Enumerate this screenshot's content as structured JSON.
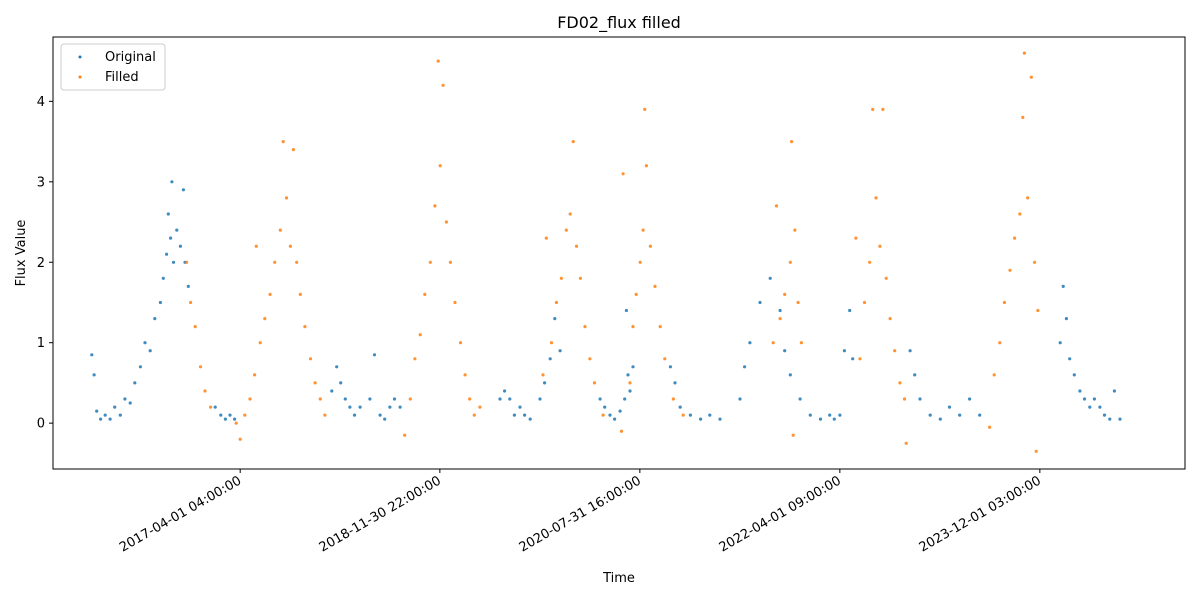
{
  "chart_data": {
    "type": "scatter",
    "title": "FD02_flux filled",
    "xlabel": "Time",
    "ylabel": "Flux Value",
    "xlim": [
      "2015-09-09",
      "2025-02-15"
    ],
    "ylim": [
      -0.57,
      4.8
    ],
    "yticks": [
      0,
      1,
      2,
      3,
      4
    ],
    "xticks": [
      {
        "date": "2017-04-01",
        "label": "2017-04-01 04:00:00"
      },
      {
        "date": "2018-11-30",
        "label": "2018-11-30 22:00:00"
      },
      {
        "date": "2020-07-31",
        "label": "2020-07-31 16:00:00"
      },
      {
        "date": "2022-04-01",
        "label": "2022-04-01 09:00:00"
      },
      {
        "date": "2023-12-01",
        "label": "2023-12-01 03:00:00"
      }
    ],
    "grid": false,
    "legend_position": "top-left",
    "series": [
      {
        "name": "Original",
        "color": "#1f77b4",
        "points": [
          [
            "2016-01-05",
            0.85
          ],
          [
            "2016-01-12",
            0.6
          ],
          [
            "2016-01-20",
            0.15
          ],
          [
            "2016-02-01",
            0.05
          ],
          [
            "2016-02-15",
            0.1
          ],
          [
            "2016-03-01",
            0.05
          ],
          [
            "2016-03-15",
            0.2
          ],
          [
            "2016-04-01",
            0.1
          ],
          [
            "2016-04-15",
            0.3
          ],
          [
            "2016-05-01",
            0.25
          ],
          [
            "2016-05-15",
            0.5
          ],
          [
            "2016-06-01",
            0.7
          ],
          [
            "2016-06-15",
            1.0
          ],
          [
            "2016-07-01",
            0.9
          ],
          [
            "2016-07-15",
            1.3
          ],
          [
            "2016-08-01",
            1.5
          ],
          [
            "2016-08-10",
            1.8
          ],
          [
            "2016-08-20",
            2.1
          ],
          [
            "2016-08-25",
            2.6
          ],
          [
            "2016-09-01",
            2.3
          ],
          [
            "2016-09-05",
            3.0
          ],
          [
            "2016-09-10",
            2.0
          ],
          [
            "2016-09-20",
            2.4
          ],
          [
            "2016-10-01",
            2.2
          ],
          [
            "2016-10-10",
            2.9
          ],
          [
            "2016-10-15",
            2.0
          ],
          [
            "2016-10-25",
            1.7
          ],
          [
            "2017-01-15",
            0.2
          ],
          [
            "2017-02-01",
            0.1
          ],
          [
            "2017-02-15",
            0.05
          ],
          [
            "2017-03-01",
            0.1
          ],
          [
            "2017-03-15",
            0.05
          ],
          [
            "2018-01-05",
            0.4
          ],
          [
            "2018-01-20",
            0.7
          ],
          [
            "2018-02-01",
            0.5
          ],
          [
            "2018-02-15",
            0.3
          ],
          [
            "2018-03-01",
            0.2
          ],
          [
            "2018-03-15",
            0.1
          ],
          [
            "2018-04-01",
            0.2
          ],
          [
            "2018-05-01",
            0.3
          ],
          [
            "2018-05-15",
            0.85
          ],
          [
            "2018-06-01",
            0.1
          ],
          [
            "2018-06-15",
            0.05
          ],
          [
            "2018-07-01",
            0.2
          ],
          [
            "2018-07-15",
            0.3
          ],
          [
            "2018-08-01",
            0.2
          ],
          [
            "2019-06-01",
            0.3
          ],
          [
            "2019-06-15",
            0.4
          ],
          [
            "2019-07-01",
            0.3
          ],
          [
            "2019-07-15",
            0.1
          ],
          [
            "2019-08-01",
            0.2
          ],
          [
            "2019-08-15",
            0.1
          ],
          [
            "2019-09-01",
            0.05
          ],
          [
            "2019-10-01",
            0.3
          ],
          [
            "2019-10-15",
            0.5
          ],
          [
            "2019-11-01",
            0.8
          ],
          [
            "2019-11-15",
            1.3
          ],
          [
            "2019-12-01",
            0.9
          ],
          [
            "2020-04-01",
            0.3
          ],
          [
            "2020-04-15",
            0.2
          ],
          [
            "2020-05-01",
            0.1
          ],
          [
            "2020-05-15",
            0.05
          ],
          [
            "2020-06-01",
            0.15
          ],
          [
            "2020-06-15",
            0.3
          ],
          [
            "2020-06-20",
            1.4
          ],
          [
            "2020-06-25",
            0.6
          ],
          [
            "2020-07-01",
            0.4
          ],
          [
            "2020-07-10",
            0.7
          ],
          [
            "2020-11-01",
            0.7
          ],
          [
            "2020-11-15",
            0.5
          ],
          [
            "2020-12-01",
            0.2
          ],
          [
            "2021-01-01",
            0.1
          ],
          [
            "2021-02-01",
            0.05
          ],
          [
            "2021-03-01",
            0.1
          ],
          [
            "2021-04-01",
            0.05
          ],
          [
            "2021-06-01",
            0.3
          ],
          [
            "2021-06-15",
            0.7
          ],
          [
            "2021-07-01",
            1.0
          ],
          [
            "2021-08-01",
            1.5
          ],
          [
            "2021-09-01",
            1.8
          ],
          [
            "2021-10-01",
            1.4
          ],
          [
            "2021-10-15",
            0.9
          ],
          [
            "2021-11-01",
            0.6
          ],
          [
            "2021-12-01",
            0.3
          ],
          [
            "2022-01-01",
            0.1
          ],
          [
            "2022-02-01",
            0.05
          ],
          [
            "2022-03-01",
            0.1
          ],
          [
            "2022-03-15",
            0.05
          ],
          [
            "2022-04-01",
            0.1
          ],
          [
            "2022-04-15",
            0.9
          ],
          [
            "2022-05-01",
            1.4
          ],
          [
            "2022-05-10",
            0.8
          ],
          [
            "2022-11-01",
            0.9
          ],
          [
            "2022-11-15",
            0.6
          ],
          [
            "2022-12-01",
            0.3
          ],
          [
            "2023-01-01",
            0.1
          ],
          [
            "2023-02-01",
            0.05
          ],
          [
            "2023-03-01",
            0.2
          ],
          [
            "2023-04-01",
            0.1
          ],
          [
            "2023-05-01",
            0.3
          ],
          [
            "2023-06-01",
            0.1
          ],
          [
            "2024-02-01",
            1.0
          ],
          [
            "2024-02-10",
            1.7
          ],
          [
            "2024-02-20",
            1.3
          ],
          [
            "2024-03-01",
            0.8
          ],
          [
            "2024-03-15",
            0.6
          ],
          [
            "2024-04-01",
            0.4
          ],
          [
            "2024-04-15",
            0.3
          ],
          [
            "2024-05-01",
            0.2
          ],
          [
            "2024-05-15",
            0.3
          ],
          [
            "2024-06-01",
            0.2
          ],
          [
            "2024-06-15",
            0.1
          ],
          [
            "2024-07-01",
            0.05
          ],
          [
            "2024-07-15",
            0.4
          ],
          [
            "2024-08-01",
            0.05
          ]
        ]
      },
      {
        "name": "Filled",
        "color": "#ff7f0e",
        "points": [
          [
            "2016-10-20",
            2.0
          ],
          [
            "2016-11-01",
            1.5
          ],
          [
            "2016-11-15",
            1.2
          ],
          [
            "2016-12-01",
            0.7
          ],
          [
            "2016-12-15",
            0.4
          ],
          [
            "2017-01-01",
            0.2
          ],
          [
            "2017-03-20",
            0.0
          ],
          [
            "2017-04-01",
            -0.2
          ],
          [
            "2017-04-15",
            0.1
          ],
          [
            "2017-05-01",
            0.3
          ],
          [
            "2017-05-15",
            0.6
          ],
          [
            "2017-05-20",
            2.2
          ],
          [
            "2017-06-01",
            1.0
          ],
          [
            "2017-06-15",
            1.3
          ],
          [
            "2017-07-01",
            1.6
          ],
          [
            "2017-07-15",
            2.0
          ],
          [
            "2017-08-01",
            2.4
          ],
          [
            "2017-08-10",
            3.5
          ],
          [
            "2017-08-20",
            2.8
          ],
          [
            "2017-09-01",
            2.2
          ],
          [
            "2017-09-10",
            3.4
          ],
          [
            "2017-09-20",
            2.0
          ],
          [
            "2017-10-01",
            1.6
          ],
          [
            "2017-10-15",
            1.2
          ],
          [
            "2017-11-01",
            0.8
          ],
          [
            "2017-11-15",
            0.5
          ],
          [
            "2017-12-01",
            0.3
          ],
          [
            "2017-12-15",
            0.1
          ],
          [
            "2018-08-15",
            -0.15
          ],
          [
            "2018-09-01",
            0.3
          ],
          [
            "2018-09-15",
            0.8
          ],
          [
            "2018-10-01",
            1.1
          ],
          [
            "2018-10-15",
            1.6
          ],
          [
            "2018-11-01",
            2.0
          ],
          [
            "2018-11-15",
            2.7
          ],
          [
            "2018-11-25",
            4.5
          ],
          [
            "2018-12-01",
            3.2
          ],
          [
            "2018-12-10",
            4.2
          ],
          [
            "2018-12-20",
            2.5
          ],
          [
            "2019-01-01",
            2.0
          ],
          [
            "2019-01-15",
            1.5
          ],
          [
            "2019-02-01",
            1.0
          ],
          [
            "2019-02-15",
            0.6
          ],
          [
            "2019-03-01",
            0.3
          ],
          [
            "2019-03-15",
            0.1
          ],
          [
            "2019-04-01",
            0.2
          ],
          [
            "2019-10-10",
            0.6
          ],
          [
            "2019-10-20",
            2.3
          ],
          [
            "2019-11-05",
            1.0
          ],
          [
            "2019-11-20",
            1.5
          ],
          [
            "2019-12-05",
            1.8
          ],
          [
            "2019-12-20",
            2.4
          ],
          [
            "2020-01-01",
            2.6
          ],
          [
            "2020-01-10",
            3.5
          ],
          [
            "2020-01-20",
            2.2
          ],
          [
            "2020-02-01",
            1.8
          ],
          [
            "2020-02-15",
            1.2
          ],
          [
            "2020-03-01",
            0.8
          ],
          [
            "2020-03-15",
            0.5
          ],
          [
            "2020-04-10",
            0.1
          ],
          [
            "2020-06-05",
            -0.1
          ],
          [
            "2020-06-10",
            3.1
          ],
          [
            "2020-07-01",
            0.5
          ],
          [
            "2020-07-10",
            1.2
          ],
          [
            "2020-07-20",
            1.6
          ],
          [
            "2020-08-01",
            2.0
          ],
          [
            "2020-08-10",
            2.4
          ],
          [
            "2020-08-15",
            3.9
          ],
          [
            "2020-08-20",
            3.2
          ],
          [
            "2020-09-01",
            2.2
          ],
          [
            "2020-09-15",
            1.7
          ],
          [
            "2020-10-01",
            1.2
          ],
          [
            "2020-10-15",
            0.8
          ],
          [
            "2020-11-10",
            0.3
          ],
          [
            "2020-12-10",
            0.1
          ],
          [
            "2021-09-10",
            1.0
          ],
          [
            "2021-09-20",
            2.7
          ],
          [
            "2021-10-01",
            1.3
          ],
          [
            "2021-10-15",
            1.6
          ],
          [
            "2021-11-01",
            2.0
          ],
          [
            "2021-11-05",
            3.5
          ],
          [
            "2021-11-15",
            2.4
          ],
          [
            "2021-11-25",
            1.5
          ],
          [
            "2021-12-05",
            1.0
          ],
          [
            "2021-11-10",
            -0.15
          ],
          [
            "2022-05-20",
            2.3
          ],
          [
            "2022-06-01",
            0.8
          ],
          [
            "2022-06-15",
            1.5
          ],
          [
            "2022-07-01",
            2.0
          ],
          [
            "2022-07-10",
            3.9
          ],
          [
            "2022-07-20",
            2.8
          ],
          [
            "2022-08-01",
            2.2
          ],
          [
            "2022-08-10",
            3.9
          ],
          [
            "2022-08-20",
            1.8
          ],
          [
            "2022-09-01",
            1.3
          ],
          [
            "2022-09-15",
            0.9
          ],
          [
            "2022-10-01",
            0.5
          ],
          [
            "2022-10-15",
            0.3
          ],
          [
            "2022-10-20",
            -0.25
          ],
          [
            "2023-07-01",
            -0.05
          ],
          [
            "2023-07-15",
            0.6
          ],
          [
            "2023-08-01",
            1.0
          ],
          [
            "2023-08-15",
            1.5
          ],
          [
            "2023-09-01",
            1.9
          ],
          [
            "2023-09-15",
            2.3
          ],
          [
            "2023-10-01",
            2.6
          ],
          [
            "2023-10-10",
            3.8
          ],
          [
            "2023-10-15",
            4.6
          ],
          [
            "2023-10-25",
            2.8
          ],
          [
            "2023-11-05",
            4.3
          ],
          [
            "2023-11-15",
            2.0
          ],
          [
            "2023-11-25",
            1.4
          ],
          [
            "2023-11-20",
            -0.35
          ]
        ]
      }
    ]
  }
}
